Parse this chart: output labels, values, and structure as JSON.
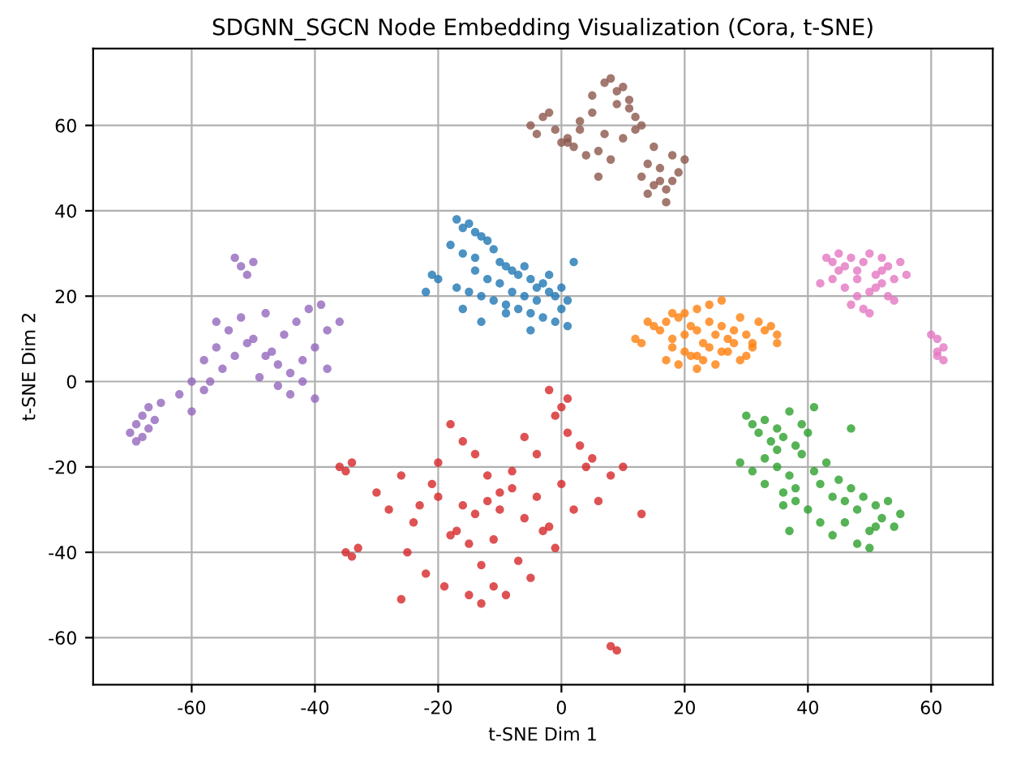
{
  "chart_data": {
    "type": "scatter",
    "title": "SDGNN_SGCN Node Embedding Visualization (Cora, t-SNE)",
    "xlabel": "t-SNE Dim 1",
    "ylabel": "t-SNE Dim 2",
    "xlim": [
      -76,
      70
    ],
    "ylim": [
      -71,
      78
    ],
    "xticks": [
      -60,
      -40,
      -20,
      0,
      20,
      40,
      60
    ],
    "yticks": [
      -60,
      -40,
      -20,
      0,
      20,
      40,
      60
    ],
    "grid": true,
    "marker": "circle",
    "series": [
      {
        "color": "#1f77b4",
        "x": [
          -17,
          -16,
          -15,
          -14,
          -13,
          -12,
          -18,
          -16,
          -14,
          -11,
          -10,
          -9,
          -8,
          -7,
          -6,
          -5,
          -4,
          -3,
          -2,
          -1,
          0,
          1,
          -17,
          -15,
          -13,
          -11,
          -9,
          -7,
          -5,
          -3,
          -1,
          1,
          -21,
          -20,
          -22,
          -12,
          -8,
          -4,
          0,
          -6,
          -10,
          -14,
          -2,
          2,
          -16,
          -13,
          -9,
          -5
        ],
        "values": [
          38,
          36,
          37,
          35,
          34,
          33,
          32,
          30,
          29,
          31,
          28,
          27,
          26,
          25,
          27,
          24,
          22,
          23,
          21,
          20,
          22,
          19,
          22,
          21,
          20,
          19,
          18,
          17,
          16,
          15,
          14,
          13,
          25,
          24,
          21,
          24,
          21,
          19,
          17,
          20,
          23,
          26,
          25,
          28,
          17,
          14,
          16,
          12
        ]
      },
      {
        "color": "#ff7f0e",
        "x": [
          15,
          16,
          17,
          18,
          19,
          20,
          21,
          22,
          23,
          24,
          25,
          26,
          27,
          28,
          29,
          30,
          31,
          32,
          33,
          34,
          12,
          13,
          18,
          20,
          22,
          24,
          26,
          28,
          30,
          17,
          19,
          21,
          23,
          25,
          27,
          29,
          20,
          22,
          24,
          26,
          18,
          14,
          31,
          35,
          35,
          22
        ],
        "values": [
          13,
          12,
          14,
          10,
          15,
          11,
          13,
          12,
          9,
          14,
          11,
          13,
          10,
          12,
          15,
          11,
          9,
          14,
          12,
          13,
          10,
          9,
          8,
          7,
          6,
          8,
          7,
          9,
          6,
          5,
          4,
          6,
          5,
          4,
          7,
          5,
          16,
          17,
          18,
          19,
          16,
          14,
          8,
          11,
          9,
          3
        ]
      },
      {
        "color": "#2ca02c",
        "x": [
          30,
          31,
          32,
          33,
          34,
          35,
          36,
          37,
          38,
          39,
          40,
          33,
          35,
          37,
          39,
          41,
          43,
          45,
          47,
          49,
          51,
          53,
          55,
          36,
          38,
          40,
          42,
          44,
          46,
          48,
          50,
          52,
          54,
          29,
          31,
          33,
          35,
          42,
          44,
          46,
          48,
          50,
          36,
          38,
          41,
          47,
          51,
          37
        ],
        "values": [
          -8,
          -10,
          -12,
          -9,
          -14,
          -11,
          -13,
          -7,
          -15,
          -10,
          -12,
          -18,
          -20,
          -22,
          -17,
          -21,
          -19,
          -23,
          -25,
          -27,
          -29,
          -28,
          -31,
          -26,
          -28,
          -30,
          -24,
          -27,
          -33,
          -30,
          -35,
          -32,
          -34,
          -19,
          -21,
          -24,
          -16,
          -33,
          -36,
          -28,
          -38,
          -39,
          -29,
          -25,
          -6,
          -11,
          -34,
          -35
        ]
      },
      {
        "color": "#d62728",
        "x": [
          -36,
          -35,
          -34,
          -35,
          -34,
          -33,
          -30,
          -28,
          -26,
          -24,
          -22,
          -20,
          -18,
          -16,
          -14,
          -12,
          -10,
          -8,
          -6,
          -4,
          -2,
          0,
          2,
          4,
          6,
          8,
          -25,
          -23,
          -21,
          -19,
          -17,
          -15,
          -13,
          -11,
          -9,
          -7,
          -5,
          -3,
          -1,
          1,
          3,
          5,
          -20,
          -18,
          -16,
          -14,
          -12,
          -10,
          -8,
          -6,
          -4,
          -2,
          0,
          -15,
          -13,
          -11,
          8,
          9,
          -26,
          10,
          13,
          -1,
          1
        ],
        "values": [
          -20,
          -21,
          -19,
          -40,
          -41,
          -39,
          -26,
          -30,
          -22,
          -33,
          -45,
          -27,
          -36,
          -29,
          -31,
          -28,
          -30,
          -25,
          -32,
          -27,
          -34,
          -24,
          -30,
          -20,
          -28,
          -22,
          -40,
          -29,
          -24,
          -48,
          -35,
          -38,
          -43,
          -37,
          -50,
          -42,
          -46,
          -35,
          -39,
          -12,
          -15,
          -18,
          -19,
          -10,
          -14,
          -17,
          -22,
          -26,
          -21,
          -13,
          -17,
          -2,
          -6,
          -50,
          -52,
          -48,
          -62,
          -63,
          -51,
          -20,
          -31,
          -8,
          -4
        ]
      },
      {
        "color": "#9467bd",
        "x": [
          -70,
          -69,
          -68,
          -67,
          -66,
          -68,
          -69,
          -67,
          -65,
          -62,
          -60,
          -58,
          -56,
          -54,
          -52,
          -50,
          -48,
          -46,
          -44,
          -42,
          -40,
          -38,
          -36,
          -57,
          -55,
          -53,
          -51,
          -49,
          -47,
          -45,
          -43,
          -41,
          -39,
          -53,
          -52,
          -51,
          -50,
          -60,
          -58,
          -46,
          -44,
          -42,
          -40,
          -56,
          -48,
          -38
        ],
        "values": [
          -12,
          -10,
          -13,
          -11,
          -9,
          -8,
          -14,
          -6,
          -5,
          -3,
          0,
          5,
          8,
          12,
          15,
          10,
          6,
          4,
          2,
          5,
          8,
          12,
          14,
          0,
          3,
          6,
          9,
          1,
          7,
          11,
          14,
          17,
          18,
          29,
          27,
          25,
          28,
          -7,
          -2,
          -1,
          -3,
          0,
          -4,
          14,
          16,
          3
        ]
      },
      {
        "color": "#8c564b",
        "x": [
          -5,
          -3,
          -1,
          1,
          3,
          5,
          7,
          9,
          11,
          13,
          0,
          2,
          4,
          6,
          8,
          10,
          12,
          14,
          16,
          18,
          20,
          13,
          15,
          17,
          19,
          14,
          16,
          18,
          7,
          8,
          9,
          10,
          11,
          12,
          5,
          3,
          1,
          -4,
          -2,
          6,
          15,
          17
        ],
        "values": [
          60,
          62,
          59,
          57,
          61,
          63,
          58,
          65,
          66,
          60,
          56,
          55,
          53,
          54,
          52,
          57,
          59,
          51,
          50,
          47,
          52,
          48,
          46,
          45,
          49,
          44,
          47,
          53,
          70,
          71,
          68,
          69,
          64,
          62,
          67,
          59,
          56,
          58,
          63,
          48,
          55,
          42
        ]
      },
      {
        "color": "#e377c2",
        "x": [
          43,
          44,
          45,
          46,
          47,
          48,
          49,
          50,
          51,
          52,
          53,
          54,
          55,
          56,
          44,
          46,
          48,
          50,
          52,
          54,
          47,
          49,
          51,
          53,
          42,
          45,
          50,
          48,
          52,
          60,
          61,
          61,
          62,
          62,
          61
        ],
        "values": [
          29,
          28,
          30,
          27,
          29,
          26,
          28,
          30,
          25,
          29,
          27,
          24,
          28,
          25,
          24,
          22,
          20,
          21,
          23,
          19,
          18,
          17,
          22,
          20,
          23,
          26,
          16,
          24,
          26,
          11,
          10,
          7,
          8,
          5,
          6
        ]
      }
    ]
  }
}
